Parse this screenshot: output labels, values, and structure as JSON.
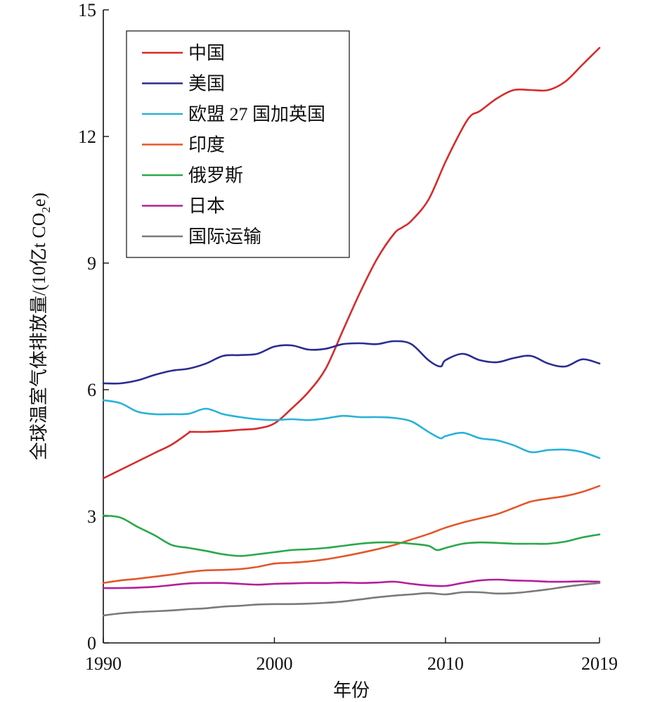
{
  "chart_data": {
    "type": "line",
    "xlabel": "年份",
    "ylabel_main": "全球温室气体排放量/(10亿t CO",
    "ylabel_sub": "2",
    "ylabel_tail": "e)",
    "xlim": [
      1990,
      2019
    ],
    "ylim": [
      0,
      15
    ],
    "xticks": [
      1990,
      2000,
      2010,
      2019
    ],
    "xtick_labels": [
      "1990",
      "2000",
      "2010",
      "2019"
    ],
    "yticks": [
      0,
      3,
      6,
      9,
      12,
      15
    ],
    "ytick_labels": [
      "0",
      "3",
      "6",
      "9",
      "12",
      "15"
    ],
    "grid": false,
    "legend_position": "top-left",
    "series": [
      {
        "name": "中国",
        "color": "#d62b2b",
        "x": [
          1990,
          1991,
          1992,
          1993,
          1994,
          1995,
          1995.1,
          1996,
          1997,
          1998,
          1999,
          2000,
          2001,
          2002,
          2003,
          2004,
          2005,
          2006,
          2007,
          2007.5,
          2008,
          2009,
          2010,
          2011,
          2011.5,
          2012,
          2013,
          2014,
          2015,
          2016,
          2017,
          2018,
          2019
        ],
        "y": [
          3.9,
          4.1,
          4.3,
          4.5,
          4.7,
          4.98,
          5.0,
          5.0,
          5.02,
          5.05,
          5.08,
          5.2,
          5.55,
          5.95,
          6.5,
          7.4,
          8.3,
          9.1,
          9.7,
          9.85,
          10.0,
          10.5,
          11.4,
          12.2,
          12.5,
          12.6,
          12.9,
          13.1,
          13.1,
          13.1,
          13.3,
          13.7,
          14.1
        ]
      },
      {
        "name": "美国",
        "color": "#2a2d8f",
        "x": [
          1990,
          1991,
          1992,
          1993,
          1994,
          1995,
          1996,
          1997,
          1998,
          1999,
          2000,
          2001,
          2002,
          2003,
          2004,
          2005,
          2006,
          2007,
          2008,
          2009,
          2009.7,
          2010,
          2011,
          2012,
          2013,
          2014,
          2015,
          2016,
          2017,
          2018,
          2019
        ],
        "y": [
          6.15,
          6.15,
          6.22,
          6.35,
          6.45,
          6.5,
          6.62,
          6.8,
          6.82,
          6.85,
          7.02,
          7.05,
          6.95,
          6.97,
          7.08,
          7.1,
          7.08,
          7.15,
          7.08,
          6.7,
          6.55,
          6.7,
          6.85,
          6.7,
          6.65,
          6.75,
          6.8,
          6.62,
          6.55,
          6.72,
          6.62
        ]
      },
      {
        "name": "欧盟 27 国加英国",
        "color": "#29b2d8",
        "x": [
          1990,
          1991,
          1992,
          1993,
          1994,
          1995,
          1996,
          1997,
          1998,
          1999,
          2000,
          2001,
          2002,
          2003,
          2004,
          2005,
          2006,
          2007,
          2008,
          2009,
          2009.7,
          2010,
          2011,
          2012,
          2013,
          2014,
          2015,
          2016,
          2017,
          2018,
          2019
        ],
        "y": [
          5.75,
          5.68,
          5.48,
          5.42,
          5.42,
          5.43,
          5.55,
          5.42,
          5.35,
          5.3,
          5.28,
          5.3,
          5.28,
          5.32,
          5.38,
          5.35,
          5.35,
          5.33,
          5.25,
          5.0,
          4.85,
          4.9,
          4.98,
          4.85,
          4.8,
          4.68,
          4.52,
          4.57,
          4.58,
          4.52,
          4.38
        ]
      },
      {
        "name": "印度",
        "color": "#e2582b",
        "x": [
          1990,
          1991,
          1992,
          1993,
          1994,
          1995,
          1996,
          1997,
          1998,
          1999,
          2000,
          2001,
          2002,
          2003,
          2004,
          2005,
          2006,
          2007,
          2008,
          2009,
          2010,
          2011,
          2012,
          2013,
          2014,
          2015,
          2016,
          2017,
          2018,
          2019
        ],
        "y": [
          1.42,
          1.48,
          1.52,
          1.57,
          1.62,
          1.68,
          1.72,
          1.73,
          1.75,
          1.8,
          1.88,
          1.9,
          1.93,
          1.98,
          2.05,
          2.13,
          2.22,
          2.32,
          2.45,
          2.58,
          2.73,
          2.85,
          2.95,
          3.05,
          3.2,
          3.35,
          3.42,
          3.48,
          3.58,
          3.72
        ]
      },
      {
        "name": "俄罗斯",
        "color": "#2aa84a",
        "x": [
          1990,
          1991,
          1992,
          1993,
          1994,
          1995,
          1996,
          1997,
          1998,
          1999,
          2000,
          2001,
          2002,
          2003,
          2004,
          2005,
          2006,
          2007,
          2008,
          2009,
          2009.5,
          2010,
          2011,
          2012,
          2013,
          2014,
          2015,
          2016,
          2017,
          2018,
          2019
        ],
        "y": [
          3.02,
          2.97,
          2.75,
          2.55,
          2.32,
          2.25,
          2.18,
          2.1,
          2.06,
          2.1,
          2.15,
          2.2,
          2.22,
          2.25,
          2.3,
          2.35,
          2.38,
          2.38,
          2.35,
          2.3,
          2.2,
          2.25,
          2.35,
          2.38,
          2.37,
          2.35,
          2.35,
          2.35,
          2.4,
          2.5,
          2.57
        ]
      },
      {
        "name": "日本",
        "color": "#b31f9a",
        "x": [
          1990,
          1991,
          1992,
          1993,
          1994,
          1995,
          1996,
          1997,
          1998,
          1999,
          2000,
          2001,
          2002,
          2003,
          2004,
          2005,
          2006,
          2007,
          2008,
          2009,
          2010,
          2011,
          2012,
          2013,
          2014,
          2015,
          2016,
          2017,
          2018,
          2019
        ],
        "y": [
          1.3,
          1.3,
          1.31,
          1.33,
          1.37,
          1.41,
          1.42,
          1.42,
          1.4,
          1.38,
          1.4,
          1.41,
          1.42,
          1.42,
          1.43,
          1.42,
          1.43,
          1.45,
          1.4,
          1.36,
          1.35,
          1.42,
          1.48,
          1.5,
          1.48,
          1.47,
          1.45,
          1.45,
          1.46,
          1.45
        ]
      },
      {
        "name": "国际运输",
        "color": "#7a7a7a",
        "x": [
          1990,
          1991,
          1992,
          1993,
          1994,
          1995,
          1996,
          1997,
          1998,
          1999,
          2000,
          2001,
          2002,
          2003,
          2004,
          2005,
          2006,
          2007,
          2008,
          2009,
          2010,
          2011,
          2012,
          2013,
          2014,
          2015,
          2016,
          2017,
          2018,
          2019
        ],
        "y": [
          0.65,
          0.7,
          0.73,
          0.75,
          0.77,
          0.8,
          0.82,
          0.86,
          0.88,
          0.91,
          0.92,
          0.92,
          0.93,
          0.95,
          0.98,
          1.03,
          1.08,
          1.12,
          1.15,
          1.18,
          1.15,
          1.2,
          1.2,
          1.17,
          1.18,
          1.22,
          1.27,
          1.33,
          1.38,
          1.42
        ]
      }
    ]
  }
}
